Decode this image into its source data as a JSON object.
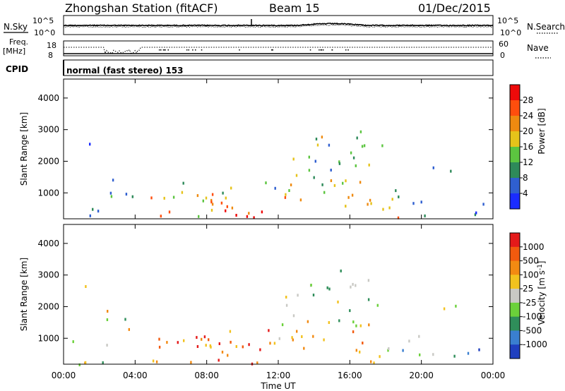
{
  "header": {
    "station": "Zhongshan Station (fitACF)",
    "beam": "Beam 15",
    "date": "01/Dec/2015"
  },
  "panels": {
    "nsky": {
      "left_label": "N.Sky",
      "right_label": "N.Search",
      "left_ticks": [
        "10^5",
        "10^0"
      ],
      "right_ticks": [
        "10^5",
        "10^0"
      ]
    },
    "freq": {
      "left_label_line1": "Freq.",
      "left_label_line2": "[MHz]",
      "right_label": "Nave",
      "left_ticks": [
        "18",
        "8"
      ],
      "right_ticks": [
        "60",
        "0"
      ]
    },
    "cpid": {
      "label": "CPID",
      "text": "normal (fast stereo) 153"
    }
  },
  "chart_data": [
    {
      "type": "heatmap",
      "name": "power",
      "ylabel": "Slant Range [km]",
      "ylim": [
        180,
        4600
      ],
      "yticks": [
        "1000",
        "2000",
        "3000",
        "4000"
      ],
      "colorbar": {
        "label": "Power [dB]",
        "ticks": [
          "4",
          "8",
          "12",
          "16",
          "20",
          "24",
          "28"
        ],
        "colors": [
          "#1a2cff",
          "#2f5fd0",
          "#2e8a5a",
          "#5cc540",
          "#e6c31a",
          "#ef8a10",
          "#ff4e0d",
          "#ee0a0a"
        ]
      }
    },
    {
      "type": "heatmap",
      "name": "velocity",
      "ylabel": "Slant Range [km]",
      "ylim": [
        180,
        4600
      ],
      "yticks": [
        "1000",
        "2000",
        "3000",
        "4000"
      ],
      "colorbar": {
        "label": "Velocity [m s",
        "label_sup": "-1",
        "label_end": "]",
        "ticks": [
          "1000",
          "500",
          "100",
          "25",
          "-25",
          "-100",
          "-500",
          "-1000"
        ],
        "colors": [
          "#1f3fbf",
          "#3a7fd0",
          "#2f8e5a",
          "#6bd13a",
          "#c9c9c4",
          "#f2c21e",
          "#f28a12",
          "#f25a0e",
          "#e41a1a"
        ]
      }
    }
  ],
  "xaxis": {
    "label": "Time UT",
    "ticks": [
      "00:00",
      "04:00",
      "08:00",
      "12:00",
      "16:00",
      "20:00",
      "00:00"
    ]
  }
}
